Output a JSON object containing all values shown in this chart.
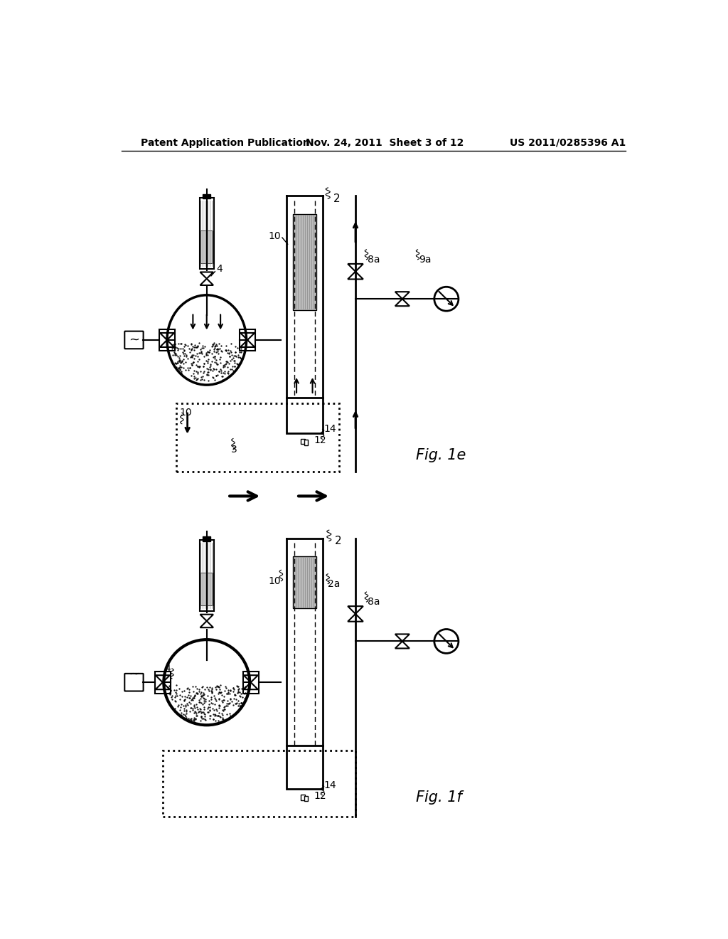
{
  "bg_color": "#ffffff",
  "header_left": "Patent Application Publication",
  "header_center": "Nov. 24, 2011  Sheet 3 of 12",
  "header_right": "US 2011/0285396 A1",
  "fig1e_label": "Fig. 1e",
  "fig1f_label": "Fig. 1f"
}
